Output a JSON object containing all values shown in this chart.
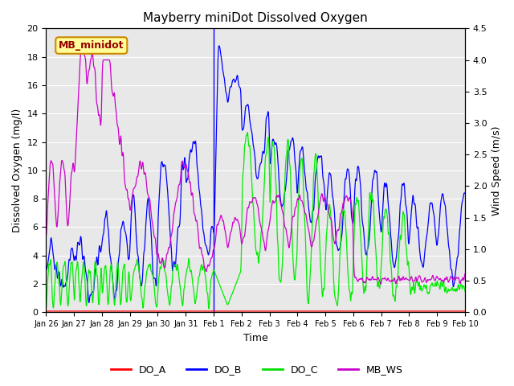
{
  "title": "Mayberry miniDot Dissolved Oxygen",
  "xlabel": "Time",
  "ylabel_left": "Dissolved Oxygen (mg/l)",
  "ylabel_right": "Wind Speed (m/s)",
  "ylim_left": [
    0,
    20
  ],
  "ylim_right": [
    0,
    4.5
  ],
  "yticks_left": [
    0,
    2,
    4,
    6,
    8,
    10,
    12,
    14,
    16,
    18,
    20
  ],
  "yticks_right": [
    0.0,
    0.5,
    1.0,
    1.5,
    2.0,
    2.5,
    3.0,
    3.5,
    4.0,
    4.5
  ],
  "xtick_labels": [
    "Jan 26",
    "Jan 27",
    "Jan 28",
    "Jan 29",
    "Jan 30",
    "Jan 31",
    "Feb 1",
    "Feb 2",
    "Feb 3",
    "Feb 4",
    "Feb 5",
    "Feb 6",
    "Feb 7",
    "Feb 8",
    "Feb 9",
    "Feb 10"
  ],
  "legend_entries": [
    "DO_A",
    "DO_B",
    "DO_C",
    "MB_WS"
  ],
  "legend_colors": [
    "#ff0000",
    "#0000ff",
    "#00dd00",
    "#cc00cc"
  ],
  "line_colors": {
    "DO_A": "#ff0000",
    "DO_B": "#0000ff",
    "DO_C": "#00ee00",
    "MB_WS": "#cc00cc"
  },
  "annotation_text": "MB_minidot",
  "annotation_color": "#990000",
  "annotation_bg": "#ffff99",
  "annotation_border": "#cc8800",
  "bg_color": "#e8e8e8",
  "grid_color": "#ffffff",
  "vline_color": "#0000ff",
  "title_fontsize": 11,
  "label_fontsize": 9,
  "tick_fontsize": 8,
  "xtick_fontsize": 7
}
